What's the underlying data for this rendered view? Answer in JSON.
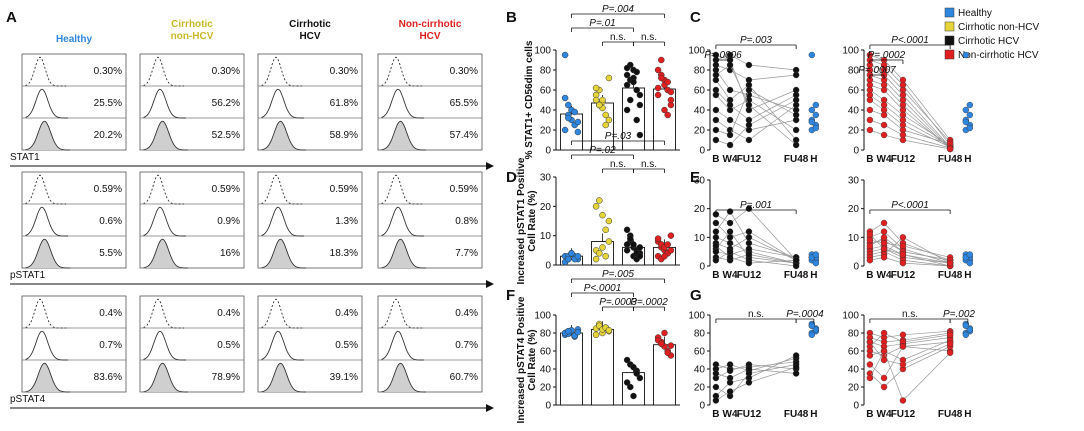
{
  "panel_labels": [
    "A",
    "B",
    "C",
    "D",
    "E",
    "F",
    "G"
  ],
  "colors": {
    "healthy": "#2E86DE",
    "cirrhotic_non_hcv": "#E6D53A",
    "cirrhotic_hcv": "#111111",
    "non_cirrhotic_hcv": "#E02020",
    "gray": "#999999",
    "fill": "#cfcfcf"
  },
  "panel_a": {
    "group_titles": [
      {
        "text": "Healthy",
        "color": "#2E86DE"
      },
      {
        "text": "Cirrhotic\nnon-HCV",
        "color": "#C9B92A"
      },
      {
        "text": "Cirrhotic\nHCV",
        "color": "#111111"
      },
      {
        "text": "Non-cirrhotic\nHCV",
        "color": "#E02020"
      }
    ],
    "rows": [
      {
        "marker": "STAT1",
        "values": [
          [
            "0.30%",
            "25.5%",
            "20.2%"
          ],
          [
            "0.30%",
            "56.2%",
            "52.5%"
          ],
          [
            "0.30%",
            "61.8%",
            "58.9%"
          ],
          [
            "0.30%",
            "65.5%",
            "57.4%"
          ]
        ]
      },
      {
        "marker": "pSTAT1",
        "values": [
          [
            "0.59%",
            "0.6%",
            "5.5%"
          ],
          [
            "0.59%",
            "0.9%",
            "16%"
          ],
          [
            "0.59%",
            "1.3%",
            "18.3%"
          ],
          [
            "0.59%",
            "0.8%",
            "7.7%"
          ]
        ]
      },
      {
        "marker": "pSTAT4",
        "values": [
          [
            "0.4%",
            "0.7%",
            "83.6%"
          ],
          [
            "0.4%",
            "0.5%",
            "78.9%"
          ],
          [
            "0.4%",
            "0.5%",
            "39.1%"
          ],
          [
            "0.4%",
            "0.7%",
            "60.7%"
          ]
        ]
      }
    ]
  },
  "legend": [
    {
      "label": "Healthy",
      "color": "#2E86DE"
    },
    {
      "label": "Cirrhotic non-HCV",
      "color": "#E6D53A"
    },
    {
      "label": "Cirrhotic HCV",
      "color": "#111111"
    },
    {
      "label": "Non-cirrhotic HCV",
      "color": "#E02020"
    }
  ],
  "chart_data": [
    {
      "id": "B",
      "type": "bar",
      "ylabel": "% STAT1+ CD56dim cells",
      "ylim": [
        0,
        100
      ],
      "yticks": [
        0,
        20,
        40,
        60,
        80,
        100
      ],
      "categories": [
        "Healthy",
        "Cirrhotic non-HCV",
        "Cirrhotic HCV",
        "Non-cirrhotic HCV"
      ],
      "means": [
        36,
        47,
        62,
        61
      ],
      "points": [
        [
          52,
          35,
          30,
          25,
          28,
          20,
          32,
          40,
          38,
          18,
          95,
          45
        ],
        [
          55,
          45,
          42,
          35,
          30,
          50,
          60,
          48,
          25,
          72,
          62,
          45,
          50
        ],
        [
          75,
          70,
          80,
          60,
          45,
          40,
          50,
          72,
          30,
          15,
          65,
          85,
          68,
          78,
          55,
          82
        ],
        [
          80,
          75,
          70,
          60,
          45,
          55,
          90,
          65,
          35,
          50,
          62,
          72,
          40,
          68,
          58
        ]
      ],
      "comparisons": [
        {
          "label": "P=.004"
        },
        {
          "label": "P=.01"
        },
        {
          "label": "n.s."
        },
        {
          "label": "n.s."
        }
      ]
    },
    {
      "id": "D",
      "type": "bar",
      "ylabel": "Increased pSTAT1 Positive Cell Rate (%)",
      "ylim": [
        0,
        30
      ],
      "yticks": [
        0,
        10,
        20,
        30
      ],
      "categories": [
        "Healthy",
        "Cirrhotic non-HCV",
        "Cirrhotic HCV",
        "Non-cirrhotic HCV"
      ],
      "means": [
        3,
        8,
        6,
        6
      ],
      "points": [
        [
          3,
          2,
          4,
          3,
          2,
          1,
          3,
          4,
          2,
          3,
          1,
          2
        ],
        [
          20,
          22,
          17,
          12,
          8,
          5,
          4,
          6,
          3,
          15,
          2
        ],
        [
          12,
          8,
          6,
          5,
          4,
          7,
          10,
          3,
          2,
          6,
          5,
          9,
          7,
          4,
          3
        ],
        [
          8,
          6,
          5,
          4,
          10,
          3,
          7,
          6,
          4,
          5,
          9,
          2,
          3,
          7
        ]
      ],
      "comparisons": [
        {
          "label": "P=.03"
        },
        {
          "label": "P=.02"
        },
        {
          "label": "n.s."
        },
        {
          "label": "n.s."
        }
      ]
    },
    {
      "id": "F",
      "type": "bar",
      "ylabel": "Increased pSTAT4 Positive Cell Rate (%)",
      "ylim": [
        0,
        100
      ],
      "yticks": [
        0,
        20,
        40,
        60,
        80,
        100
      ],
      "categories": [
        "Healthy",
        "Cirrhotic non-HCV",
        "Cirrhotic HCV",
        "Non-cirrhotic HCV"
      ],
      "means": [
        80,
        84,
        36,
        67
      ],
      "points": [
        [
          78,
          82,
          80,
          76,
          84,
          80,
          79,
          83,
          77,
          81,
          80,
          82
        ],
        [
          85,
          90,
          80,
          86,
          82,
          78,
          88,
          84,
          86,
          83
        ],
        [
          50,
          45,
          42,
          38,
          30,
          25,
          20,
          10,
          35
        ],
        [
          75,
          70,
          65,
          60,
          55,
          72,
          68,
          80,
          58,
          66
        ]
      ],
      "comparisons": [
        {
          "label": "P=.005"
        },
        {
          "label": "P<.0001"
        },
        {
          "label": "P=.0003"
        },
        {
          "label": "P=.0002"
        }
      ]
    },
    {
      "id": "C",
      "type": "line",
      "series_color": "#111111",
      "ylim": [
        0,
        100
      ],
      "yticks": [
        0,
        20,
        40,
        60,
        80,
        100
      ],
      "categories": [
        "B",
        "W4",
        "FU12",
        "FU48",
        "H"
      ],
      "lines": [
        [
          90,
          95,
          85,
          80
        ],
        [
          85,
          80,
          70,
          75
        ],
        [
          95,
          90,
          40,
          60
        ],
        [
          80,
          60,
          55,
          40
        ],
        [
          70,
          50,
          65,
          10
        ],
        [
          60,
          45,
          30,
          55
        ],
        [
          55,
          40,
          50,
          20
        ],
        [
          40,
          30,
          20,
          30
        ],
        [
          30,
          20,
          10,
          45
        ],
        [
          20,
          15,
          60,
          35
        ],
        [
          10,
          5,
          25,
          50
        ],
        [
          75,
          85,
          45,
          5
        ]
      ],
      "healthy": [
        30,
        25,
        20,
        35,
        40,
        45,
        28,
        22,
        95
      ],
      "comparisons": [
        {
          "label": "P=.003"
        },
        {
          "label": "P=.0006"
        }
      ]
    },
    {
      "id": "C2",
      "type": "line",
      "series_color": "#E02020",
      "ylim": [
        0,
        100
      ],
      "yticks": [
        0,
        20,
        40,
        60,
        80,
        100
      ],
      "categories": [
        "B",
        "W4",
        "FU12",
        "FU48",
        "H"
      ],
      "lines": [
        [
          95,
          90,
          70,
          10
        ],
        [
          90,
          85,
          65,
          5
        ],
        [
          85,
          80,
          60,
          8
        ],
        [
          80,
          75,
          55,
          3
        ],
        [
          75,
          70,
          50,
          2
        ],
        [
          70,
          65,
          45,
          1
        ],
        [
          65,
          60,
          40,
          2
        ],
        [
          60,
          50,
          35,
          5
        ],
        [
          55,
          45,
          30,
          4
        ],
        [
          50,
          40,
          25,
          3
        ],
        [
          40,
          35,
          20,
          6
        ],
        [
          30,
          25,
          15,
          2
        ],
        [
          20,
          15,
          10,
          1
        ]
      ],
      "healthy": [
        30,
        25,
        20,
        35,
        40,
        45,
        28,
        22,
        95
      ],
      "comparisons": [
        {
          "label": "P<.0001"
        },
        {
          "label": "P=.0002"
        },
        {
          "label": "P=.0007"
        }
      ]
    },
    {
      "id": "E",
      "type": "line",
      "series_color": "#111111",
      "ylim": [
        0,
        30
      ],
      "yticks": [
        0,
        10,
        20,
        30
      ],
      "categories": [
        "B",
        "W4",
        "FU12",
        "FU48",
        "H"
      ],
      "lines": [
        [
          18,
          15,
          20,
          2
        ],
        [
          12,
          19,
          8,
          3
        ],
        [
          10,
          8,
          5,
          1
        ],
        [
          8,
          6,
          10,
          2
        ],
        [
          6,
          12,
          3,
          1
        ],
        [
          5,
          4,
          6,
          3
        ],
        [
          3,
          2,
          4,
          1
        ],
        [
          2,
          5,
          2,
          0
        ],
        [
          15,
          10,
          12,
          2
        ],
        [
          7,
          3,
          1,
          2
        ]
      ],
      "healthy": [
        3,
        2,
        4,
        3,
        2,
        1,
        3,
        4
      ],
      "comparisons": [
        {
          "label": "P=.001"
        }
      ]
    },
    {
      "id": "E2",
      "type": "line",
      "series_color": "#E02020",
      "ylim": [
        0,
        30
      ],
      "yticks": [
        0,
        10,
        20,
        30
      ],
      "categories": [
        "B",
        "W4",
        "FU12",
        "FU48",
        "H"
      ],
      "lines": [
        [
          12,
          15,
          8,
          2
        ],
        [
          10,
          12,
          6,
          1
        ],
        [
          8,
          9,
          5,
          2
        ],
        [
          6,
          7,
          4,
          0
        ],
        [
          5,
          6,
          3,
          1
        ],
        [
          4,
          5,
          2,
          0
        ],
        [
          3,
          4,
          10,
          1
        ],
        [
          2,
          3,
          1,
          0
        ],
        [
          9,
          8,
          7,
          3
        ],
        [
          7,
          10,
          5,
          2
        ],
        [
          11,
          6,
          4,
          1
        ]
      ],
      "healthy": [
        3,
        2,
        4,
        3,
        2,
        1,
        3,
        4
      ],
      "comparisons": [
        {
          "label": "P<.0001"
        }
      ]
    },
    {
      "id": "G",
      "type": "line",
      "series_color": "#111111",
      "ylim": [
        0,
        100
      ],
      "yticks": [
        0,
        20,
        40,
        60,
        80,
        100
      ],
      "categories": [
        "B",
        "W4",
        "FU12",
        "FU48",
        "H"
      ],
      "lines": [
        [
          45,
          40,
          42,
          48
        ],
        [
          40,
          45,
          38,
          52
        ],
        [
          30,
          38,
          45,
          40
        ],
        [
          20,
          10,
          35,
          45
        ],
        [
          10,
          25,
          30,
          55
        ],
        [
          35,
          30,
          40,
          35
        ],
        [
          5,
          15,
          25,
          42
        ]
      ],
      "healthy": [
        80,
        85,
        90,
        82,
        78,
        84,
        88
      ],
      "comparisons": [
        {
          "label": "n.s."
        },
        {
          "label": "P=.0004"
        }
      ]
    },
    {
      "id": "G2",
      "type": "line",
      "series_color": "#E02020",
      "ylim": [
        0,
        100
      ],
      "yticks": [
        0,
        20,
        40,
        60,
        80,
        100
      ],
      "categories": [
        "B",
        "W4",
        "FU12",
        "FU48",
        "H"
      ],
      "lines": [
        [
          80,
          75,
          78,
          82
        ],
        [
          75,
          70,
          72,
          80
        ],
        [
          70,
          65,
          68,
          75
        ],
        [
          65,
          80,
          70,
          78
        ],
        [
          60,
          55,
          65,
          70
        ],
        [
          55,
          60,
          50,
          72
        ],
        [
          45,
          30,
          65,
          60
        ],
        [
          35,
          20,
          40,
          65
        ],
        [
          30,
          60,
          5,
          58
        ],
        [
          70,
          50,
          45,
          68
        ]
      ],
      "healthy": [
        80,
        85,
        90,
        82,
        78,
        84,
        88
      ],
      "comparisons": [
        {
          "label": "n.s."
        },
        {
          "label": "P=.002"
        }
      ]
    }
  ]
}
